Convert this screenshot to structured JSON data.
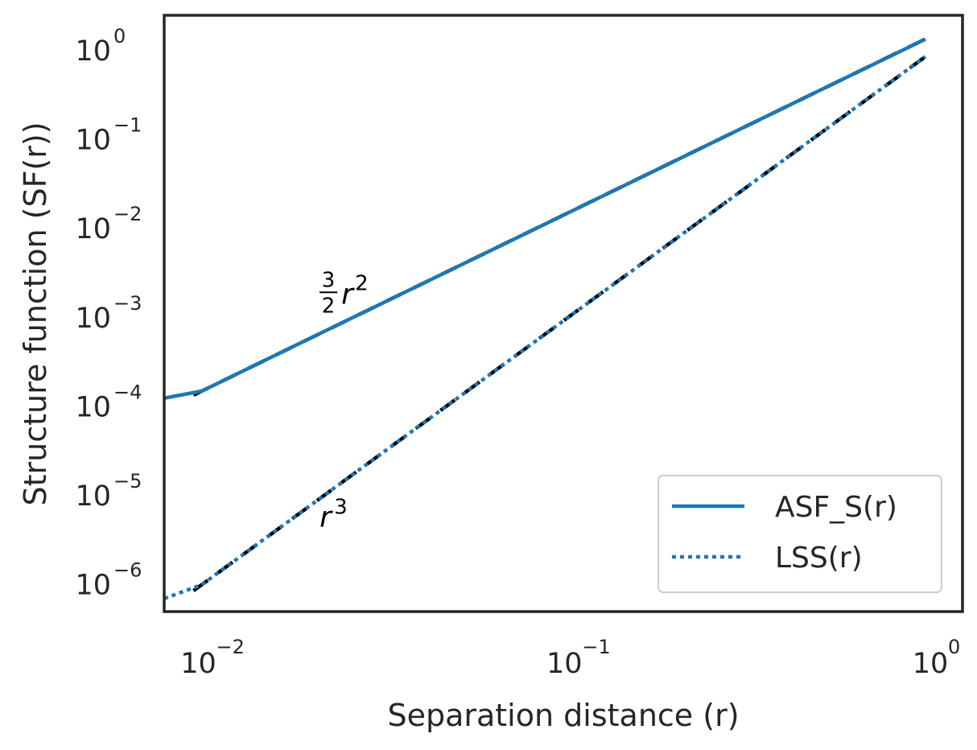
{
  "chart_data": {
    "type": "line",
    "title": "",
    "xlabel": "Separation distance (r)",
    "ylabel": "Structure function (SF(r))",
    "xscale": "log",
    "yscale": "log",
    "xlim": [
      0.0079,
      1.2
    ],
    "ylim": [
      5e-07,
      2.5
    ],
    "grid": false,
    "legend_position": "lower-right",
    "x_ticks": [
      {
        "base": "10",
        "exp": "−2",
        "value": 0.01
      },
      {
        "base": "10",
        "exp": "−1",
        "value": 0.1
      },
      {
        "base": "10",
        "exp": "0",
        "value": 1
      }
    ],
    "y_ticks": [
      {
        "base": "10",
        "exp": "0",
        "value": 1
      },
      {
        "base": "10",
        "exp": "−1",
        "value": 0.1
      },
      {
        "base": "10",
        "exp": "−2",
        "value": 0.01
      },
      {
        "base": "10",
        "exp": "−3",
        "value": 0.001
      },
      {
        "base": "10",
        "exp": "−4",
        "value": 0.0001
      },
      {
        "base": "10",
        "exp": "−5",
        "value": 1e-05
      },
      {
        "base": "10",
        "exp": "−6",
        "value": 1e-06
      }
    ],
    "series": [
      {
        "name": "ASF_S(r)",
        "style": "solid",
        "color": "#1f77b4",
        "x": [
          0.0079,
          0.01,
          0.02,
          0.05,
          0.1,
          0.2,
          0.5,
          0.95
        ],
        "y": [
          0.000125,
          0.00015,
          0.0006,
          0.00375,
          0.015,
          0.06,
          0.375,
          1.35
        ]
      },
      {
        "name": "LSS(r)",
        "style": "dotted",
        "color": "#1f77b4",
        "x": [
          0.0079,
          0.01,
          0.02,
          0.05,
          0.1,
          0.2,
          0.5,
          0.95
        ],
        "y": [
          7e-07,
          1e-06,
          8e-06,
          0.000125,
          0.001,
          0.008,
          0.125,
          0.86
        ]
      }
    ],
    "reference_lines": [
      {
        "formula": "3/2 r^2",
        "coef": 1.5,
        "power": 2,
        "color": "#000000",
        "style": "dashed"
      },
      {
        "formula": "r^3",
        "coef": 1,
        "power": 3,
        "color": "#000000",
        "style": "dashed"
      }
    ],
    "annotations": [
      {
        "numerator": "3",
        "denominator": "2",
        "var": "r",
        "exp": "2",
        "x": 0.021,
        "y": 0.0011
      },
      {
        "var": "r",
        "exp": "3",
        "x": 0.021,
        "y": 4.5e-06
      }
    ]
  }
}
